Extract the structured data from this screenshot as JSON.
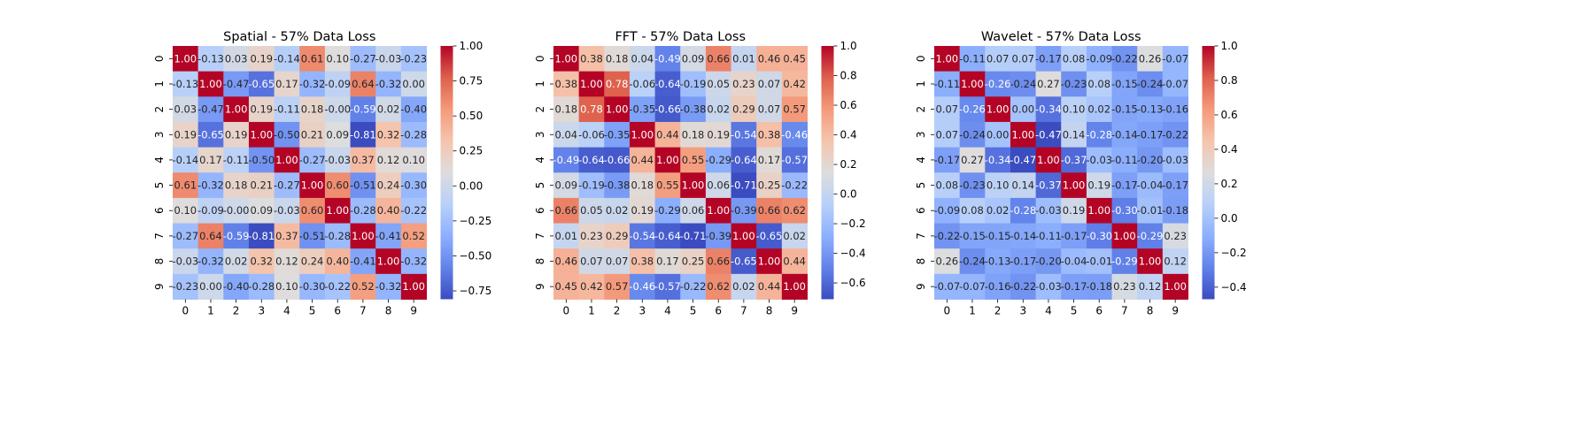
{
  "chart_data": [
    {
      "type": "heatmap",
      "title": "Spatial - 57% Data Loss",
      "xlabel": "",
      "ylabel": "",
      "x_ticklabels": [
        "0",
        "1",
        "2",
        "3",
        "4",
        "5",
        "6",
        "7",
        "8",
        "9"
      ],
      "y_ticklabels": [
        "0",
        "1",
        "2",
        "3",
        "4",
        "5",
        "6",
        "7",
        "8",
        "9"
      ],
      "colormap": "coolwarm",
      "vmin": -0.81,
      "vmax": 1.0,
      "colorbar_ticks": [
        -0.75,
        -0.5,
        -0.25,
        0.0,
        0.25,
        0.5,
        0.75,
        1.0
      ],
      "colorbar_ticklabels": [
        "−0.75",
        "−0.50",
        "−0.25",
        "0.00",
        "0.25",
        "0.50",
        "0.75",
        "1.00"
      ],
      "values": [
        [
          1.0,
          -0.13,
          0.03,
          0.19,
          -0.14,
          0.61,
          0.1,
          -0.27,
          -0.03,
          -0.23
        ],
        [
          -0.13,
          1.0,
          -0.47,
          -0.65,
          0.17,
          -0.32,
          -0.09,
          0.64,
          -0.32,
          0.0
        ],
        [
          0.03,
          -0.47,
          1.0,
          0.19,
          -0.11,
          0.18,
          -0.0,
          -0.59,
          0.02,
          -0.4
        ],
        [
          0.19,
          -0.65,
          0.19,
          1.0,
          -0.5,
          0.21,
          0.09,
          -0.81,
          0.32,
          -0.28
        ],
        [
          -0.14,
          0.17,
          -0.11,
          -0.5,
          1.0,
          -0.27,
          -0.03,
          0.37,
          0.12,
          0.1
        ],
        [
          0.61,
          -0.32,
          0.18,
          0.21,
          -0.27,
          1.0,
          0.6,
          -0.51,
          0.24,
          -0.3
        ],
        [
          0.1,
          -0.09,
          -0.0,
          0.09,
          -0.03,
          0.6,
          1.0,
          -0.28,
          0.4,
          -0.22
        ],
        [
          -0.27,
          0.64,
          -0.59,
          -0.81,
          0.37,
          -0.51,
          -0.28,
          1.0,
          -0.41,
          0.52
        ],
        [
          -0.03,
          -0.32,
          0.02,
          0.32,
          0.12,
          0.24,
          0.4,
          -0.41,
          1.0,
          -0.32
        ],
        [
          -0.23,
          0.0,
          -0.4,
          -0.28,
          0.1,
          -0.3,
          -0.22,
          0.52,
          -0.32,
          1.0
        ]
      ]
    },
    {
      "type": "heatmap",
      "title": "FFT - 57% Data Loss",
      "xlabel": "",
      "ylabel": "",
      "x_ticklabels": [
        "0",
        "1",
        "2",
        "3",
        "4",
        "5",
        "6",
        "7",
        "8",
        "9"
      ],
      "y_ticklabels": [
        "0",
        "1",
        "2",
        "3",
        "4",
        "5",
        "6",
        "7",
        "8",
        "9"
      ],
      "colormap": "coolwarm",
      "vmin": -0.71,
      "vmax": 1.0,
      "colorbar_ticks": [
        -0.6,
        -0.4,
        -0.2,
        0.0,
        0.2,
        0.4,
        0.6,
        0.8,
        1.0
      ],
      "colorbar_ticklabels": [
        "−0.6",
        "−0.4",
        "−0.2",
        "0.0",
        "0.2",
        "0.4",
        "0.6",
        "0.8",
        "1.0"
      ],
      "values": [
        [
          1.0,
          0.38,
          0.18,
          0.04,
          -0.49,
          0.09,
          0.66,
          0.01,
          0.46,
          0.45
        ],
        [
          0.38,
          1.0,
          0.78,
          -0.06,
          -0.64,
          -0.19,
          0.05,
          0.23,
          0.07,
          0.42
        ],
        [
          0.18,
          0.78,
          1.0,
          -0.35,
          -0.66,
          -0.38,
          0.02,
          0.29,
          0.07,
          0.57
        ],
        [
          0.04,
          -0.06,
          -0.35,
          1.0,
          0.44,
          0.18,
          0.19,
          -0.54,
          0.38,
          -0.46
        ],
        [
          -0.49,
          -0.64,
          -0.66,
          0.44,
          1.0,
          0.55,
          -0.29,
          -0.64,
          0.17,
          -0.57
        ],
        [
          0.09,
          -0.19,
          -0.38,
          0.18,
          0.55,
          1.0,
          0.06,
          -0.71,
          0.25,
          -0.22
        ],
        [
          0.66,
          0.05,
          0.02,
          0.19,
          -0.29,
          0.06,
          1.0,
          -0.39,
          0.66,
          0.62
        ],
        [
          0.01,
          0.23,
          0.29,
          -0.54,
          -0.64,
          -0.71,
          -0.39,
          1.0,
          -0.65,
          0.02
        ],
        [
          0.46,
          0.07,
          0.07,
          0.38,
          0.17,
          0.25,
          0.66,
          -0.65,
          1.0,
          0.44
        ],
        [
          0.45,
          0.42,
          0.57,
          -0.46,
          -0.57,
          -0.22,
          0.62,
          0.02,
          0.44,
          1.0
        ]
      ]
    },
    {
      "type": "heatmap",
      "title": "Wavelet - 57% Data Loss",
      "xlabel": "",
      "ylabel": "",
      "x_ticklabels": [
        "0",
        "1",
        "2",
        "3",
        "4",
        "5",
        "6",
        "7",
        "8",
        "9"
      ],
      "y_ticklabels": [
        "0",
        "1",
        "2",
        "3",
        "4",
        "5",
        "6",
        "7",
        "8",
        "9"
      ],
      "colormap": "coolwarm",
      "vmin": -0.47,
      "vmax": 1.0,
      "colorbar_ticks": [
        -0.4,
        -0.2,
        0.0,
        0.2,
        0.4,
        0.6,
        0.8,
        1.0
      ],
      "colorbar_ticklabels": [
        "−0.4",
        "−0.2",
        "0.0",
        "0.2",
        "0.4",
        "0.6",
        "0.8",
        "1.0"
      ],
      "values": [
        [
          1.0,
          -0.11,
          0.07,
          0.07,
          -0.17,
          0.08,
          -0.09,
          -0.22,
          0.26,
          -0.07
        ],
        [
          -0.11,
          1.0,
          -0.26,
          -0.24,
          0.27,
          -0.23,
          0.08,
          -0.15,
          -0.24,
          -0.07
        ],
        [
          0.07,
          -0.26,
          1.0,
          0.0,
          -0.34,
          0.1,
          0.02,
          -0.15,
          -0.13,
          -0.16
        ],
        [
          0.07,
          -0.24,
          0.0,
          1.0,
          -0.47,
          0.14,
          -0.28,
          -0.14,
          -0.17,
          -0.22
        ],
        [
          -0.17,
          0.27,
          -0.34,
          -0.47,
          1.0,
          -0.37,
          -0.03,
          -0.11,
          -0.2,
          -0.03
        ],
        [
          0.08,
          -0.23,
          0.1,
          0.14,
          -0.37,
          1.0,
          0.19,
          -0.17,
          -0.04,
          -0.17
        ],
        [
          -0.09,
          0.08,
          0.02,
          -0.28,
          -0.03,
          0.19,
          1.0,
          -0.3,
          -0.01,
          -0.18
        ],
        [
          -0.22,
          -0.15,
          -0.15,
          -0.14,
          -0.11,
          -0.17,
          -0.3,
          1.0,
          -0.29,
          0.23
        ],
        [
          0.26,
          -0.24,
          -0.13,
          -0.17,
          -0.2,
          -0.04,
          -0.01,
          -0.29,
          1.0,
          0.12
        ],
        [
          -0.07,
          -0.07,
          -0.16,
          -0.22,
          -0.03,
          -0.17,
          -0.18,
          0.23,
          0.12,
          1.0
        ]
      ]
    }
  ]
}
